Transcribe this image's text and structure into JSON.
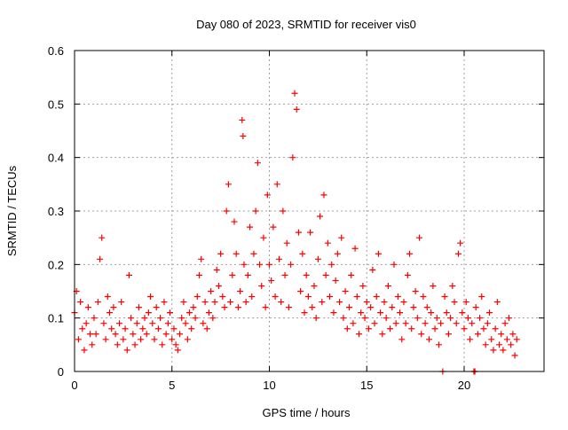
{
  "chart_data": {
    "type": "scatter",
    "title": "Day 080 of 2023, SRMTID for receiver vis0",
    "xlabel": "GPS time / hours",
    "ylabel": "SRMTID / TECUs",
    "xlim": [
      0,
      24.1
    ],
    "ylim": [
      0,
      0.6
    ],
    "xticks": [
      0,
      5,
      10,
      15,
      20
    ],
    "xtick_labels": [
      "0",
      "5",
      "10",
      "15",
      "20"
    ],
    "yticks": [
      0,
      0.1,
      0.2,
      0.3,
      0.4,
      0.5,
      0.6
    ],
    "ytick_labels": [
      "0",
      "0.1",
      "0.2",
      "0.3",
      "0.4",
      "0.5",
      "0.6"
    ],
    "grid": true,
    "marker": "+",
    "color": "#ff0000",
    "series": [
      {
        "name": "vis0",
        "points": [
          [
            0.0,
            0.11
          ],
          [
            0.1,
            0.15
          ],
          [
            0.2,
            0.06
          ],
          [
            0.3,
            0.13
          ],
          [
            0.4,
            0.08
          ],
          [
            0.5,
            0.04
          ],
          [
            0.6,
            0.09
          ],
          [
            0.7,
            0.12
          ],
          [
            0.8,
            0.07
          ],
          [
            0.9,
            0.05
          ],
          [
            1.0,
            0.1
          ],
          [
            1.1,
            0.07
          ],
          [
            1.2,
            0.13
          ],
          [
            1.3,
            0.21
          ],
          [
            1.4,
            0.25
          ],
          [
            1.5,
            0.09
          ],
          [
            1.6,
            0.06
          ],
          [
            1.7,
            0.14
          ],
          [
            1.8,
            0.11
          ],
          [
            1.9,
            0.08
          ],
          [
            2.0,
            0.12
          ],
          [
            2.1,
            0.07
          ],
          [
            2.2,
            0.05
          ],
          [
            2.3,
            0.09
          ],
          [
            2.4,
            0.13
          ],
          [
            2.5,
            0.06
          ],
          [
            2.6,
            0.08
          ],
          [
            2.7,
            0.04
          ],
          [
            2.8,
            0.18
          ],
          [
            2.9,
            0.1
          ],
          [
            3.0,
            0.07
          ],
          [
            3.1,
            0.05
          ],
          [
            3.2,
            0.09
          ],
          [
            3.3,
            0.12
          ],
          [
            3.4,
            0.06
          ],
          [
            3.5,
            0.08
          ],
          [
            3.6,
            0.1
          ],
          [
            3.7,
            0.07
          ],
          [
            3.8,
            0.11
          ],
          [
            3.9,
            0.14
          ],
          [
            4.0,
            0.09
          ],
          [
            4.1,
            0.06
          ],
          [
            4.2,
            0.12
          ],
          [
            4.3,
            0.08
          ],
          [
            4.4,
            0.1
          ],
          [
            4.5,
            0.05
          ],
          [
            4.6,
            0.13
          ],
          [
            4.7,
            0.07
          ],
          [
            4.8,
            0.09
          ],
          [
            4.9,
            0.11
          ],
          [
            5.0,
            0.06
          ],
          [
            5.1,
            0.08
          ],
          [
            5.2,
            0.05
          ],
          [
            5.3,
            0.04
          ],
          [
            5.4,
            0.07
          ],
          [
            5.5,
            0.1
          ],
          [
            5.6,
            0.13
          ],
          [
            5.7,
            0.09
          ],
          [
            5.8,
            0.06
          ],
          [
            5.9,
            0.11
          ],
          [
            6.0,
            0.08
          ],
          [
            6.1,
            0.12
          ],
          [
            6.2,
            0.1
          ],
          [
            6.3,
            0.14
          ],
          [
            6.4,
            0.18
          ],
          [
            6.5,
            0.21
          ],
          [
            6.6,
            0.09
          ],
          [
            6.7,
            0.13
          ],
          [
            6.8,
            0.08
          ],
          [
            6.9,
            0.11
          ],
          [
            7.0,
            0.15
          ],
          [
            7.1,
            0.1
          ],
          [
            7.2,
            0.13
          ],
          [
            7.3,
            0.19
          ],
          [
            7.4,
            0.16
          ],
          [
            7.5,
            0.22
          ],
          [
            7.6,
            0.14
          ],
          [
            7.7,
            0.12
          ],
          [
            7.8,
            0.3
          ],
          [
            7.9,
            0.35
          ],
          [
            8.0,
            0.13
          ],
          [
            8.1,
            0.18
          ],
          [
            8.2,
            0.28
          ],
          [
            8.3,
            0.22
          ],
          [
            8.4,
            0.12
          ],
          [
            8.5,
            0.15
          ],
          [
            8.6,
            0.47
          ],
          [
            8.65,
            0.44
          ],
          [
            8.7,
            0.2
          ],
          [
            8.8,
            0.13
          ],
          [
            8.9,
            0.18
          ],
          [
            9.0,
            0.27
          ],
          [
            9.1,
            0.14
          ],
          [
            9.2,
            0.22
          ],
          [
            9.3,
            0.3
          ],
          [
            9.4,
            0.39
          ],
          [
            9.5,
            0.2
          ],
          [
            9.6,
            0.16
          ],
          [
            9.7,
            0.25
          ],
          [
            9.8,
            0.12
          ],
          [
            9.9,
            0.33
          ],
          [
            10.0,
            0.2
          ],
          [
            10.1,
            0.17
          ],
          [
            10.2,
            0.27
          ],
          [
            10.3,
            0.14
          ],
          [
            10.4,
            0.35
          ],
          [
            10.5,
            0.21
          ],
          [
            10.6,
            0.13
          ],
          [
            10.7,
            0.3
          ],
          [
            10.8,
            0.18
          ],
          [
            10.9,
            0.24
          ],
          [
            11.0,
            0.12
          ],
          [
            11.1,
            0.2
          ],
          [
            11.2,
            0.4
          ],
          [
            11.3,
            0.52
          ],
          [
            11.4,
            0.49
          ],
          [
            11.5,
            0.26
          ],
          [
            11.6,
            0.15
          ],
          [
            11.7,
            0.22
          ],
          [
            11.8,
            0.11
          ],
          [
            11.9,
            0.18
          ],
          [
            12.0,
            0.14
          ],
          [
            12.1,
            0.26
          ],
          [
            12.2,
            0.12
          ],
          [
            12.3,
            0.16
          ],
          [
            12.4,
            0.1
          ],
          [
            12.5,
            0.21
          ],
          [
            12.6,
            0.29
          ],
          [
            12.7,
            0.13
          ],
          [
            12.8,
            0.33
          ],
          [
            12.9,
            0.18
          ],
          [
            13.0,
            0.24
          ],
          [
            13.1,
            0.14
          ],
          [
            13.2,
            0.2
          ],
          [
            13.3,
            0.11
          ],
          [
            13.4,
            0.17
          ],
          [
            13.5,
            0.22
          ],
          [
            13.6,
            0.13
          ],
          [
            13.7,
            0.25
          ],
          [
            13.8,
            0.1
          ],
          [
            13.9,
            0.15
          ],
          [
            14.0,
            0.08
          ],
          [
            14.1,
            0.12
          ],
          [
            14.2,
            0.18
          ],
          [
            14.3,
            0.09
          ],
          [
            14.4,
            0.23
          ],
          [
            14.5,
            0.14
          ],
          [
            14.6,
            0.07
          ],
          [
            14.7,
            0.11
          ],
          [
            14.8,
            0.16
          ],
          [
            14.9,
            0.1
          ],
          [
            15.0,
            0.13
          ],
          [
            15.1,
            0.08
          ],
          [
            15.2,
            0.12
          ],
          [
            15.3,
            0.19
          ],
          [
            15.4,
            0.09
          ],
          [
            15.5,
            0.14
          ],
          [
            15.6,
            0.22
          ],
          [
            15.7,
            0.11
          ],
          [
            15.8,
            0.07
          ],
          [
            15.9,
            0.13
          ],
          [
            16.0,
            0.1
          ],
          [
            16.1,
            0.16
          ],
          [
            16.2,
            0.08
          ],
          [
            16.3,
            0.12
          ],
          [
            16.4,
            0.2
          ],
          [
            16.5,
            0.09
          ],
          [
            16.6,
            0.14
          ],
          [
            16.7,
            0.11
          ],
          [
            16.8,
            0.06
          ],
          [
            16.9,
            0.13
          ],
          [
            17.0,
            0.09
          ],
          [
            17.1,
            0.18
          ],
          [
            17.2,
            0.22
          ],
          [
            17.3,
            0.08
          ],
          [
            17.4,
            0.12
          ],
          [
            17.5,
            0.15
          ],
          [
            17.6,
            0.1
          ],
          [
            17.7,
            0.25
          ],
          [
            17.8,
            0.07
          ],
          [
            17.9,
            0.14
          ],
          [
            18.0,
            0.09
          ],
          [
            18.1,
            0.12
          ],
          [
            18.2,
            0.06
          ],
          [
            18.3,
            0.11
          ],
          [
            18.4,
            0.16
          ],
          [
            18.5,
            0.08
          ],
          [
            18.6,
            0.1
          ],
          [
            18.7,
            0.05
          ],
          [
            18.8,
            0.09
          ],
          [
            18.9,
            0.0
          ],
          [
            19.0,
            0.14
          ],
          [
            19.1,
            0.11
          ],
          [
            19.2,
            0.07
          ],
          [
            19.3,
            0.1
          ],
          [
            19.4,
            0.16
          ],
          [
            19.5,
            0.13
          ],
          [
            19.6,
            0.09
          ],
          [
            19.7,
            0.22
          ],
          [
            19.8,
            0.24
          ],
          [
            19.9,
            0.11
          ],
          [
            20.0,
            0.08
          ],
          [
            20.1,
            0.13
          ],
          [
            20.2,
            0.1
          ],
          [
            20.3,
            0.06
          ],
          [
            20.4,
            0.09
          ],
          [
            20.5,
            0.0
          ],
          [
            20.55,
            0.0
          ],
          [
            20.6,
            0.12
          ],
          [
            20.7,
            0.07
          ],
          [
            20.8,
            0.1
          ],
          [
            20.9,
            0.14
          ],
          [
            21.0,
            0.08
          ],
          [
            21.1,
            0.05
          ],
          [
            21.2,
            0.09
          ],
          [
            21.3,
            0.11
          ],
          [
            21.4,
            0.06
          ],
          [
            21.5,
            0.04
          ],
          [
            21.6,
            0.08
          ],
          [
            21.7,
            0.13
          ],
          [
            21.8,
            0.05
          ],
          [
            21.9,
            0.07
          ],
          [
            22.0,
            0.04
          ],
          [
            22.1,
            0.09
          ],
          [
            22.2,
            0.06
          ],
          [
            22.3,
            0.1
          ],
          [
            22.4,
            0.05
          ],
          [
            22.5,
            0.07
          ],
          [
            22.6,
            0.03
          ],
          [
            22.7,
            0.06
          ]
        ]
      }
    ]
  }
}
